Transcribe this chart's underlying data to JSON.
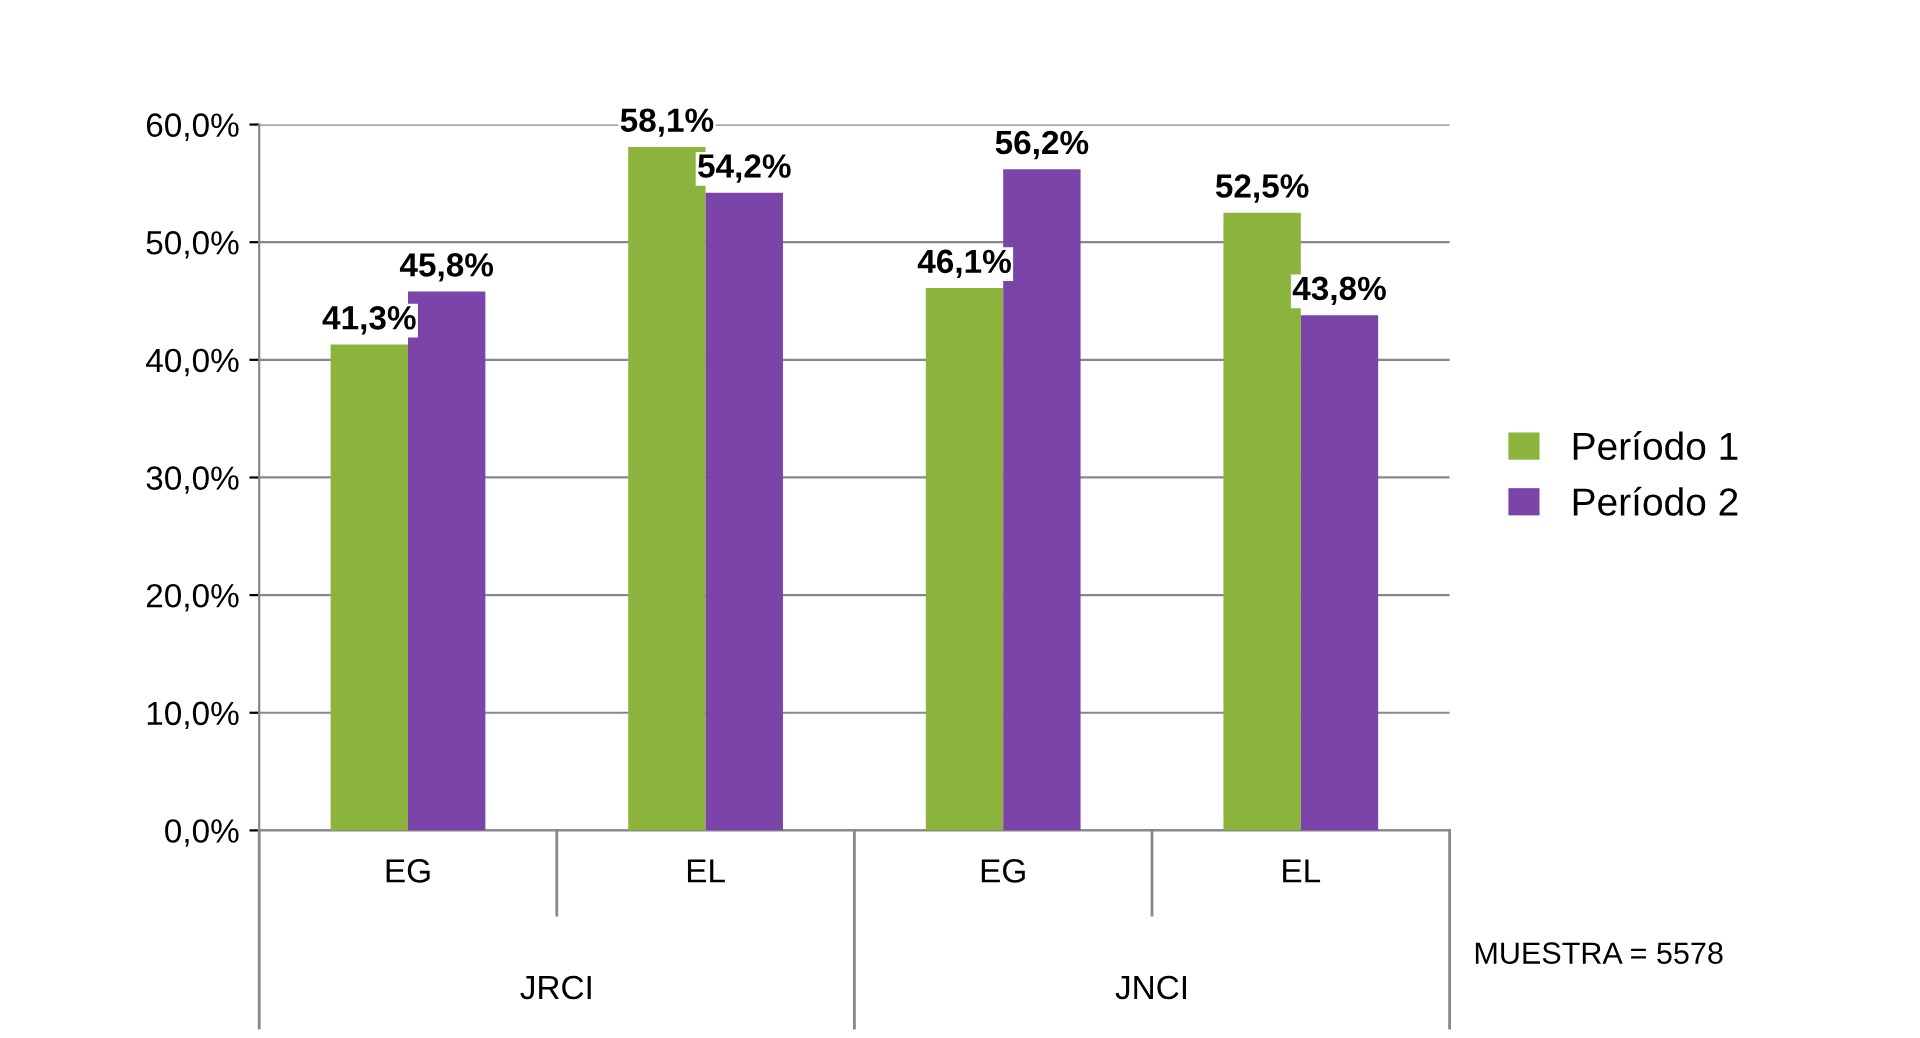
{
  "chart_data": {
    "type": "bar",
    "categories": [
      "EG",
      "EL",
      "EG",
      "EL"
    ],
    "series": [
      {
        "name": "Período 1",
        "color": "#8cb43c",
        "values": [
          41.3,
          58.1,
          46.1,
          52.5
        ],
        "value_labels": [
          "41,3%",
          "58,1%",
          "46,1%",
          "52,5%"
        ]
      },
      {
        "name": "Período 2",
        "color": "#7b44a8",
        "values": [
          45.8,
          54.2,
          56.2,
          43.8
        ],
        "value_labels": [
          "45,8%",
          "54,2%",
          "56,2%",
          "43,8%"
        ]
      }
    ],
    "ylim": [
      0,
      60
    ],
    "yticks": [
      {
        "value": 0,
        "label": "0,0%"
      },
      {
        "value": 10,
        "label": "10,0%"
      },
      {
        "value": 20,
        "label": "20,0%"
      },
      {
        "value": 30,
        "label": "30,0%"
      },
      {
        "value": 40,
        "label": "40,0%"
      },
      {
        "value": 50,
        "label": "50,0%"
      },
      {
        "value": 60,
        "label": "60,0%"
      }
    ],
    "grid": "y",
    "legend": "right",
    "annotations": [
      "JRCI",
      "JNCI",
      "MUESTRA = 5578"
    ]
  }
}
